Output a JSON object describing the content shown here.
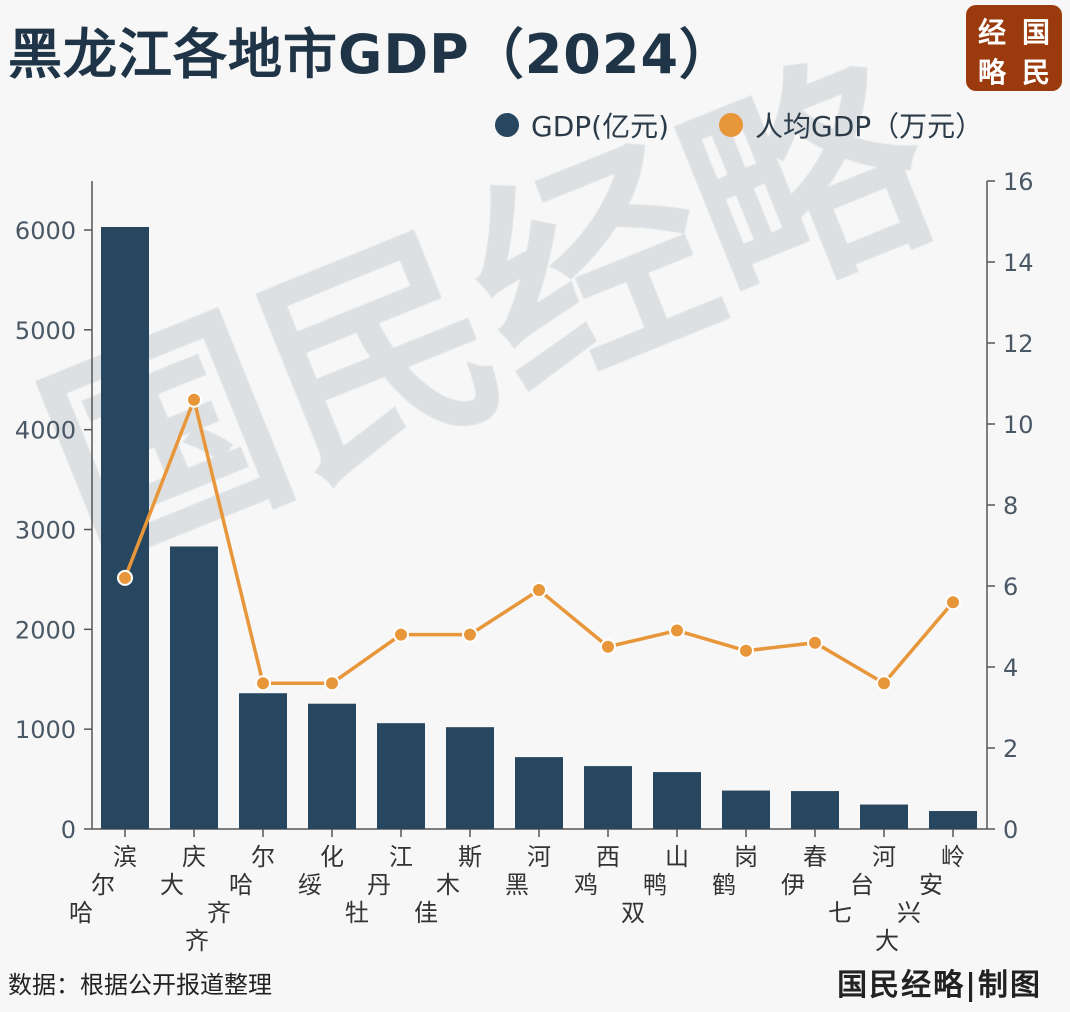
{
  "title": "黑龙江各地市GDP（2024）",
  "logo": {
    "chars": [
      "经",
      "国",
      "略",
      "民"
    ]
  },
  "watermark": "国民经略",
  "legend": [
    {
      "label": "GDP(亿元)",
      "color": "#274760"
    },
    {
      "label": "人均GDP（万元）",
      "color": "#e8963a"
    }
  ],
  "footer": {
    "source": "数据：根据公开报道整理",
    "credit": "国民经略|制图"
  },
  "chart_data": {
    "type": "bar+line",
    "title": "黑龙江各地市GDP（2024）",
    "categories": [
      "哈尔滨",
      "大庆",
      "齐齐哈尔",
      "绥化",
      "牡丹江",
      "佳木斯",
      "黑河",
      "鸡西",
      "双鸭山",
      "鹤岗",
      "伊春",
      "七台河",
      "大兴安岭"
    ],
    "series": [
      {
        "name": "GDP(亿元)",
        "type": "bar",
        "axis": "left",
        "color": "#274760",
        "values": [
          6030,
          2830,
          1360,
          1255,
          1060,
          1020,
          720,
          630,
          570,
          385,
          380,
          245,
          180
        ]
      },
      {
        "name": "人均GDP（万元）",
        "type": "line",
        "axis": "right",
        "color": "#e8963a",
        "values": [
          6.2,
          10.6,
          3.6,
          3.6,
          4.8,
          4.8,
          5.9,
          4.5,
          4.9,
          4.4,
          4.6,
          3.6,
          5.6
        ]
      }
    ],
    "ylim_left": [
      0,
      6500
    ],
    "yticks_left": [
      0,
      1000,
      2000,
      3000,
      4000,
      5000,
      6000
    ],
    "ylim_right": [
      0,
      16
    ],
    "yticks_right": [
      0,
      2,
      4,
      6,
      8,
      10,
      12,
      14,
      16
    ],
    "grid": false,
    "legend_position": "top-right"
  }
}
